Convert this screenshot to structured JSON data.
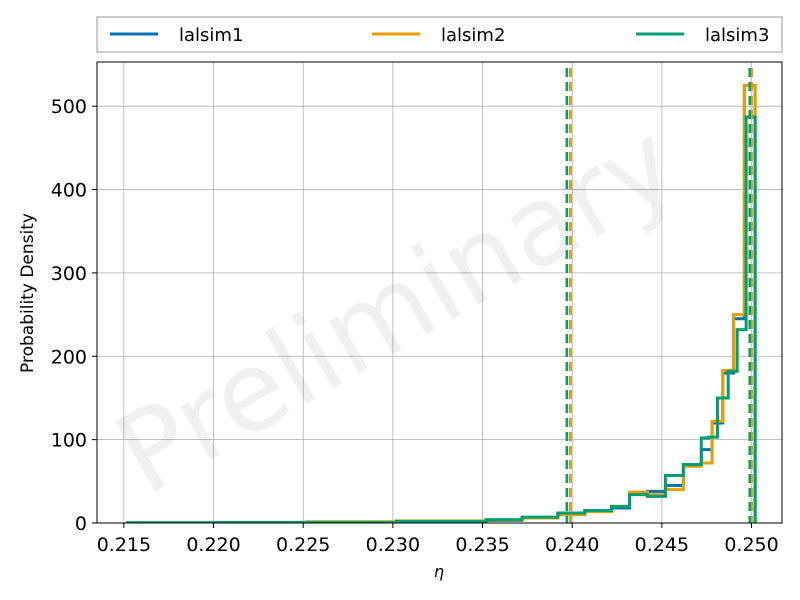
{
  "chart_data": {
    "type": "histogram",
    "xlabel": "η",
    "ylabel": "Probability Density",
    "xlim": [
      0.2135,
      0.2517
    ],
    "ylim": [
      0,
      553
    ],
    "grid": true,
    "xticks": [
      0.215,
      0.22,
      0.225,
      0.23,
      0.235,
      0.24,
      0.245,
      0.25
    ],
    "xtick_labels": [
      "0.215",
      "0.220",
      "0.225",
      "0.230",
      "0.235",
      "0.240",
      "0.245",
      "0.250"
    ],
    "yticks": [
      0,
      100,
      200,
      300,
      400,
      500
    ],
    "ytick_labels": [
      "0",
      "100",
      "200",
      "300",
      "400",
      "500"
    ],
    "legend": {
      "placement": "top, above plot, 3 columns"
    },
    "watermark": "Preliminary",
    "colors": {
      "lalsim1": "#0072b2",
      "lalsim2": "#e69f00",
      "lalsim3": "#009e73",
      "grid": "#b0b0b0"
    },
    "series": [
      {
        "name": "lalsim1",
        "color": "#0072b2",
        "bin_edges": [
          0.2152,
          0.2202,
          0.2302,
          0.2352,
          0.2372,
          0.2392,
          0.2407,
          0.2422,
          0.2432,
          0.2442,
          0.2452,
          0.2462,
          0.2472,
          0.2478,
          0.2484,
          0.249,
          0.2496,
          0.2502
        ],
        "density": [
          0.3,
          0.6,
          2,
          3,
          6,
          10,
          14,
          18,
          35,
          38,
          45,
          70,
          88,
          120,
          180,
          245,
          525
        ],
        "credible_interval": [
          0.2399,
          0.25
        ]
      },
      {
        "name": "lalsim2",
        "color": "#e69f00",
        "bin_edges": [
          0.2152,
          0.2202,
          0.2252,
          0.2302,
          0.2352,
          0.2372,
          0.2392,
          0.2407,
          0.2422,
          0.2432,
          0.2442,
          0.2452,
          0.2462,
          0.2472,
          0.2478,
          0.2484,
          0.249,
          0.2496,
          0.2502
        ],
        "density": [
          0.3,
          0.6,
          1.5,
          2.5,
          3.5,
          6,
          10,
          14,
          20,
          37,
          34,
          40,
          68,
          72,
          122,
          183,
          250,
          525
        ],
        "credible_interval": [
          0.2399,
          0.25
        ]
      },
      {
        "name": "lalsim3",
        "color": "#009e73",
        "bin_edges": [
          0.2152,
          0.2202,
          0.2302,
          0.2352,
          0.2372,
          0.2392,
          0.2407,
          0.2422,
          0.2432,
          0.2442,
          0.2452,
          0.2462,
          0.2472,
          0.2476,
          0.2481,
          0.2487,
          0.2492,
          0.2497,
          0.2502
        ],
        "density": [
          0.3,
          0.8,
          2,
          4,
          7,
          12,
          15,
          20,
          34,
          32,
          57,
          70,
          102,
          103,
          150,
          182,
          232,
          487
        ],
        "credible_interval": [
          0.2397,
          0.2499
        ]
      }
    ]
  }
}
